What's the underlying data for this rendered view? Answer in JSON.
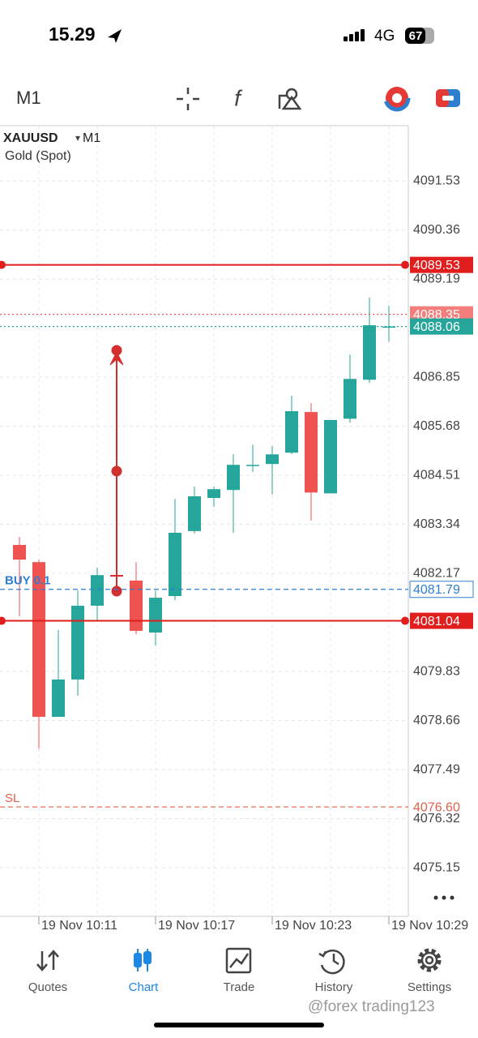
{
  "status_bar": {
    "time": "15.29",
    "network": "4G",
    "battery": "67"
  },
  "toolbar": {
    "timeframe": "M1"
  },
  "chart": {
    "type": "candlestick",
    "symbol": "XAUUSD",
    "timeframe": "M1",
    "description": "Gold (Spot)",
    "categories": [
      null,
      "19 Nov 10:11",
      null,
      null,
      null,
      null,
      null,
      "19 Nov 10:17",
      null,
      null,
      null,
      null,
      null,
      "19 Nov 10:23",
      null,
      null,
      null,
      null,
      null,
      "19 Nov 10:29"
    ],
    "open": [
      4082.85,
      4082.44,
      4078.75,
      4079.64,
      4081.4,
      null,
      4082.0,
      4080.76,
      4081.63,
      4083.18,
      4083.97,
      4084.16,
      4084.76,
      4084.78,
      4085.05,
      4086.02,
      4084.08,
      4085.86,
      4086.79,
      4088.06
    ],
    "high": [
      4083.04,
      4082.5,
      4080.82,
      4081.76,
      4082.31,
      null,
      4082.44,
      4081.76,
      4083.95,
      4084.24,
      4084.24,
      4085.01,
      4085.24,
      4085.21,
      4086.41,
      4086.23,
      4085.83,
      4087.39,
      4088.75,
      4088.55
    ],
    "low": [
      4081.15,
      4077.99,
      4078.75,
      4079.25,
      4081.05,
      null,
      4080.72,
      4080.45,
      4081.53,
      4083.12,
      4083.76,
      4083.14,
      4084.59,
      4084.05,
      4085.01,
      4083.43,
      4084.08,
      4085.77,
      4086.71,
      4087.7
    ],
    "close": [
      4082.5,
      4078.75,
      4079.64,
      4081.4,
      4082.13,
      null,
      4080.8,
      4081.59,
      4083.14,
      4084.01,
      4084.18,
      4084.76,
      4084.76,
      4085.01,
      4086.04,
      4084.1,
      4085.83,
      4086.81,
      4088.09,
      4088.06
    ],
    "up_color": "#26a69a",
    "down_color": "#ef5350",
    "ylim": [
      4073.99,
      4092.85
    ],
    "yticks": [
      4091.53,
      4090.36,
      4089.19,
      4086.85,
      4085.68,
      4084.51,
      4083.34,
      4082.17,
      4079.83,
      4078.66,
      4077.49,
      4076.32,
      4075.15
    ],
    "grid": true,
    "price_lines": [
      {
        "price": 4089.53,
        "color": "#e01e1e",
        "style": "solid"
      },
      {
        "price": 4088.35,
        "color": "#ef5350",
        "style": "dotted"
      },
      {
        "price": 4088.06,
        "color": "#26a69a",
        "style": "dotted"
      },
      {
        "name": "BUY 0.1",
        "price": 4081.79,
        "color": "#2f7fd1",
        "style": "dashed"
      },
      {
        "price": 4081.04,
        "color": "#e01e1e",
        "style": "solid"
      },
      {
        "name": "SL",
        "price": {
          "value": 4076.6,
          "label": "4076.60"
        },
        "color": "#e0604a",
        "style": "dashed"
      }
    ]
  },
  "tabs": [
    "Quotes",
    "Chart",
    "Trade",
    "History",
    "Settings"
  ],
  "active_tab": 1,
  "watermark": "@forex trading123"
}
